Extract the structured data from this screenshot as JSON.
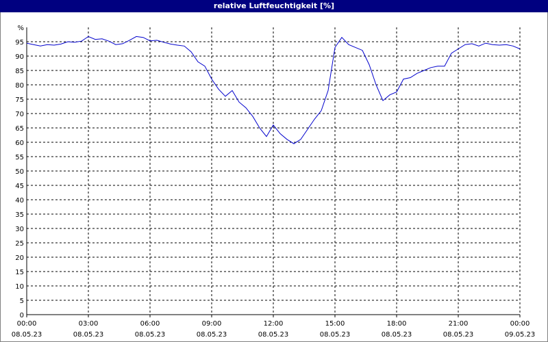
{
  "window": {
    "title": "relative Luftfeuchtigkeit [%]"
  },
  "colors": {
    "titlebar": "#000080",
    "line": "#0000cc",
    "grid": "#000000"
  },
  "chart_data": {
    "type": "line",
    "title": "relative Luftfeuchtigkeit [%]",
    "xlabel": "",
    "ylabel": "",
    "y_unit_label": "%",
    "ylim": [
      0,
      100
    ],
    "y_ticks": [
      0,
      5,
      10,
      15,
      20,
      25,
      30,
      35,
      40,
      45,
      50,
      55,
      60,
      65,
      70,
      75,
      80,
      85,
      90,
      95
    ],
    "x_range": [
      "08.05.23 00:00",
      "09.05.23 00:00"
    ],
    "x_ticks": [
      {
        "time": "00:00",
        "date": "08.05.23"
      },
      {
        "time": "03:00",
        "date": "08.05.23"
      },
      {
        "time": "06:00",
        "date": "08.05.23"
      },
      {
        "time": "09:00",
        "date": "08.05.23"
      },
      {
        "time": "12:00",
        "date": "08.05.23"
      },
      {
        "time": "15:00",
        "date": "08.05.23"
      },
      {
        "time": "18:00",
        "date": "08.05.23"
      },
      {
        "time": "21:00",
        "date": "08.05.23"
      },
      {
        "time": "00:00",
        "date": "09.05.23"
      }
    ],
    "grid": true,
    "series": [
      {
        "x": [
          "00:00",
          "00:20",
          "00:40",
          "01:00",
          "01:20",
          "01:40",
          "02:00",
          "02:20",
          "02:40",
          "03:00",
          "03:20",
          "03:40",
          "04:00",
          "04:20",
          "04:40",
          "05:00",
          "05:20",
          "05:40",
          "06:00",
          "06:20",
          "06:40",
          "07:00",
          "07:20",
          "07:40",
          "08:00",
          "08:20",
          "08:40",
          "09:00",
          "09:20",
          "09:40",
          "10:00",
          "10:20",
          "10:40",
          "11:00",
          "11:20",
          "11:40",
          "12:00",
          "12:20",
          "12:40",
          "13:00",
          "13:20",
          "13:40",
          "14:00",
          "14:20",
          "14:40",
          "15:00",
          "15:20",
          "15:40",
          "16:00",
          "16:20",
          "16:40",
          "17:00",
          "17:20",
          "17:40",
          "18:00",
          "18:20",
          "18:40",
          "19:00",
          "19:20",
          "19:40",
          "20:00",
          "20:20",
          "20:40",
          "21:00",
          "21:20",
          "21:40",
          "22:00",
          "22:20",
          "22:40",
          "23:00",
          "23:20",
          "23:40",
          "00:00"
        ],
        "values": [
          94.5,
          94.0,
          93.5,
          94.0,
          93.8,
          94.2,
          95.0,
          94.8,
          95.2,
          96.8,
          95.8,
          96.0,
          95.2,
          94.0,
          94.3,
          95.5,
          96.8,
          96.5,
          95.3,
          95.5,
          94.8,
          94.2,
          93.8,
          93.5,
          91.5,
          88.0,
          86.5,
          82.0,
          78.5,
          76.0,
          78.0,
          74.0,
          72.0,
          69.0,
          65.0,
          62.0,
          66.0,
          63.0,
          61.0,
          59.5,
          61.0,
          64.5,
          68.0,
          71.0,
          78.0,
          93.0,
          96.5,
          94.0,
          93.0,
          92.0,
          87.0,
          80.0,
          74.5,
          76.5,
          77.5,
          82.0,
          82.5,
          84.0,
          85.0,
          86.0,
          86.5,
          86.5,
          91.0,
          92.5,
          94.0,
          94.3,
          93.5,
          94.5,
          94.0,
          93.8,
          94.0,
          93.5,
          92.5
        ]
      }
    ]
  }
}
